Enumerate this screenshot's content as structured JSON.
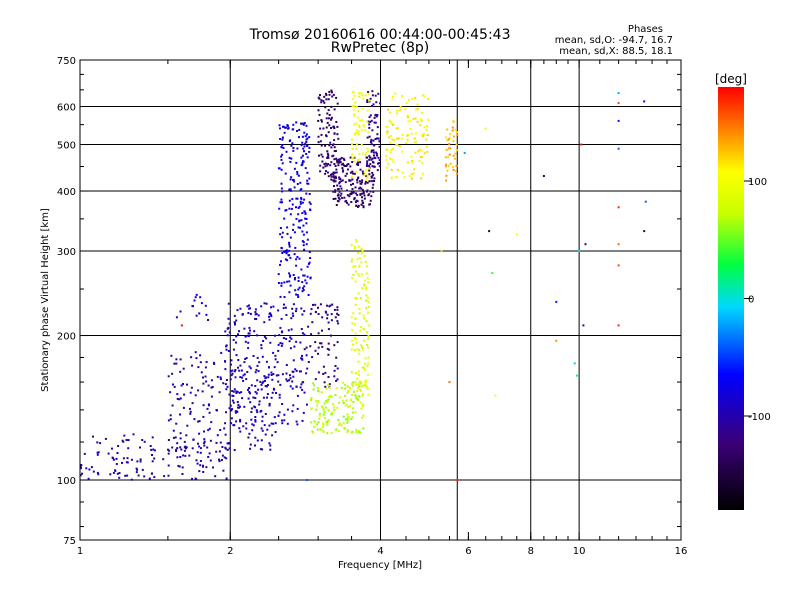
{
  "header": {
    "title": "Tromsø 20160616 00:44:00-00:45:43",
    "subtitle": "RwPretec (8p)"
  },
  "stats": {
    "heading": "Phases",
    "line_o": "mean, sd,O: -94.7, 16.7",
    "line_x": "mean, sd,X:  88.5, 18.1"
  },
  "colorbar": {
    "label": "[deg]",
    "min": -180,
    "max": 180,
    "tick_values": [
      100,
      0,
      -100
    ],
    "tick_labels": [
      "100",
      "0",
      "-100"
    ]
  },
  "chart_data": {
    "type": "scatter",
    "title": "Tromsø 20160616 00:44:00-00:45:43",
    "subtitle": "RwPretec (8p)",
    "xlabel": "Frequency [MHz]",
    "ylabel": "Stationary phase Virtual Height [km]",
    "xscale": "log",
    "yscale": "log",
    "xlim": [
      1,
      16
    ],
    "ylim": [
      75,
      750
    ],
    "grid": true,
    "x_ticks": [
      1,
      2,
      4,
      6,
      8,
      10,
      16
    ],
    "x_tick_labels": [
      "1",
      "2",
      "4",
      "6",
      "8",
      "10",
      "16"
    ],
    "y_ticks": [
      75,
      100,
      200,
      300,
      400,
      500,
      600,
      750
    ],
    "y_tick_labels": [
      "75",
      "100",
      "200",
      "300",
      "400",
      "500",
      "600",
      "750"
    ],
    "x_grid_lines": [
      2,
      4,
      5.7,
      8,
      10
    ],
    "y_grid_lines": [
      100,
      200,
      300,
      400,
      500,
      600
    ],
    "color_scale": "rainbow, black at -180 deg to red at 180 deg",
    "clusters": [
      {
        "name": "O low trace",
        "f_range": [
          1.0,
          2.0
        ],
        "h_range": [
          100,
          125
        ],
        "phase": -105,
        "n": 150
      },
      {
        "name": "O rising trace",
        "f_range": [
          1.5,
          2.5
        ],
        "h_range": [
          115,
          185
        ],
        "phase": -102,
        "n": 190
      },
      {
        "name": "O mid cloud",
        "f_range": [
          1.95,
          2.85
        ],
        "h_range": [
          130,
          235
        ],
        "phase": -96,
        "n": 260
      },
      {
        "name": "O blob near 1.6 MHz",
        "f_range": [
          1.55,
          1.85
        ],
        "h_range": [
          215,
          245
        ],
        "phase": -92,
        "n": 14
      },
      {
        "name": "O column",
        "f_range": [
          2.5,
          2.9
        ],
        "h_range": [
          240,
          560
        ],
        "phase": -80,
        "n": 240
      },
      {
        "name": "O cusp",
        "f_range": [
          2.85,
          3.3
        ],
        "h_range": [
          155,
          235
        ],
        "phase": -120,
        "n": 70
      },
      {
        "name": "O steep upper",
        "f_range": [
          3.0,
          3.3
        ],
        "h_range": [
          420,
          650
        ],
        "phase": -132,
        "n": 110
      },
      {
        "name": "O band 400 km",
        "f_range": [
          3.2,
          3.9
        ],
        "h_range": [
          370,
          470
        ],
        "phase": -128,
        "n": 180
      },
      {
        "name": "O upper 3.9 MHz",
        "f_range": [
          3.75,
          4.0
        ],
        "h_range": [
          440,
          650
        ],
        "phase": -112,
        "n": 70
      },
      {
        "name": "X lower trace",
        "f_range": [
          2.9,
          3.7
        ],
        "h_range": [
          125,
          160
        ],
        "phase": 70,
        "n": 150
      },
      {
        "name": "X column",
        "f_range": [
          3.5,
          3.8
        ],
        "h_range": [
          150,
          320
        ],
        "phase": 88,
        "n": 130
      },
      {
        "name": "X upper",
        "f_range": [
          3.5,
          3.8
        ],
        "h_range": [
          420,
          650
        ],
        "phase": 98,
        "n": 70
      },
      {
        "name": "X band 500 km",
        "f_range": [
          4.1,
          5.0
        ],
        "h_range": [
          420,
          650
        ],
        "phase": 108,
        "n": 120
      },
      {
        "name": "X 5.5 MHz",
        "f_range": [
          5.4,
          5.7
        ],
        "h_range": [
          420,
          560
        ],
        "phase": 130,
        "n": 40
      }
    ],
    "scattered_points": [
      {
        "f": 5.3,
        "h": 300,
        "phase": 120
      },
      {
        "f": 5.5,
        "h": 160,
        "phase": 150
      },
      {
        "f": 5.7,
        "h": 100,
        "phase": 170
      },
      {
        "f": 5.9,
        "h": 480,
        "phase": -20
      },
      {
        "f": 6.5,
        "h": 540,
        "phase": 100
      },
      {
        "f": 6.6,
        "h": 330,
        "phase": -140
      },
      {
        "f": 6.7,
        "h": 270,
        "phase": 40
      },
      {
        "f": 6.8,
        "h": 150,
        "phase": 110
      },
      {
        "f": 7.5,
        "h": 325,
        "phase": 100
      },
      {
        "f": 8.5,
        "h": 430,
        "phase": -140
      },
      {
        "f": 9.0,
        "h": 235,
        "phase": -60
      },
      {
        "f": 9.0,
        "h": 195,
        "phase": 140
      },
      {
        "f": 9.8,
        "h": 175,
        "phase": -10
      },
      {
        "f": 9.9,
        "h": 165,
        "phase": 20
      },
      {
        "f": 10.0,
        "h": 300,
        "phase": 0
      },
      {
        "f": 10.1,
        "h": 500,
        "phase": 170
      },
      {
        "f": 10.2,
        "h": 210,
        "phase": -110
      },
      {
        "f": 10.3,
        "h": 310,
        "phase": -110
      },
      {
        "f": 12.0,
        "h": 640,
        "phase": -20
      },
      {
        "f": 12.0,
        "h": 610,
        "phase": 160
      },
      {
        "f": 12.0,
        "h": 560,
        "phase": -60
      },
      {
        "f": 12.0,
        "h": 490,
        "phase": -40
      },
      {
        "f": 12.0,
        "h": 370,
        "phase": 170
      },
      {
        "f": 12.0,
        "h": 310,
        "phase": 150
      },
      {
        "f": 12.0,
        "h": 280,
        "phase": 160
      },
      {
        "f": 12.0,
        "h": 210,
        "phase": 170
      },
      {
        "f": 13.5,
        "h": 615,
        "phase": -60
      },
      {
        "f": 13.6,
        "h": 380,
        "phase": -40
      },
      {
        "f": 13.5,
        "h": 330,
        "phase": -140
      },
      {
        "f": 1.6,
        "h": 210,
        "phase": 175
      },
      {
        "f": 2.85,
        "h": 100,
        "phase": -40
      }
    ]
  }
}
